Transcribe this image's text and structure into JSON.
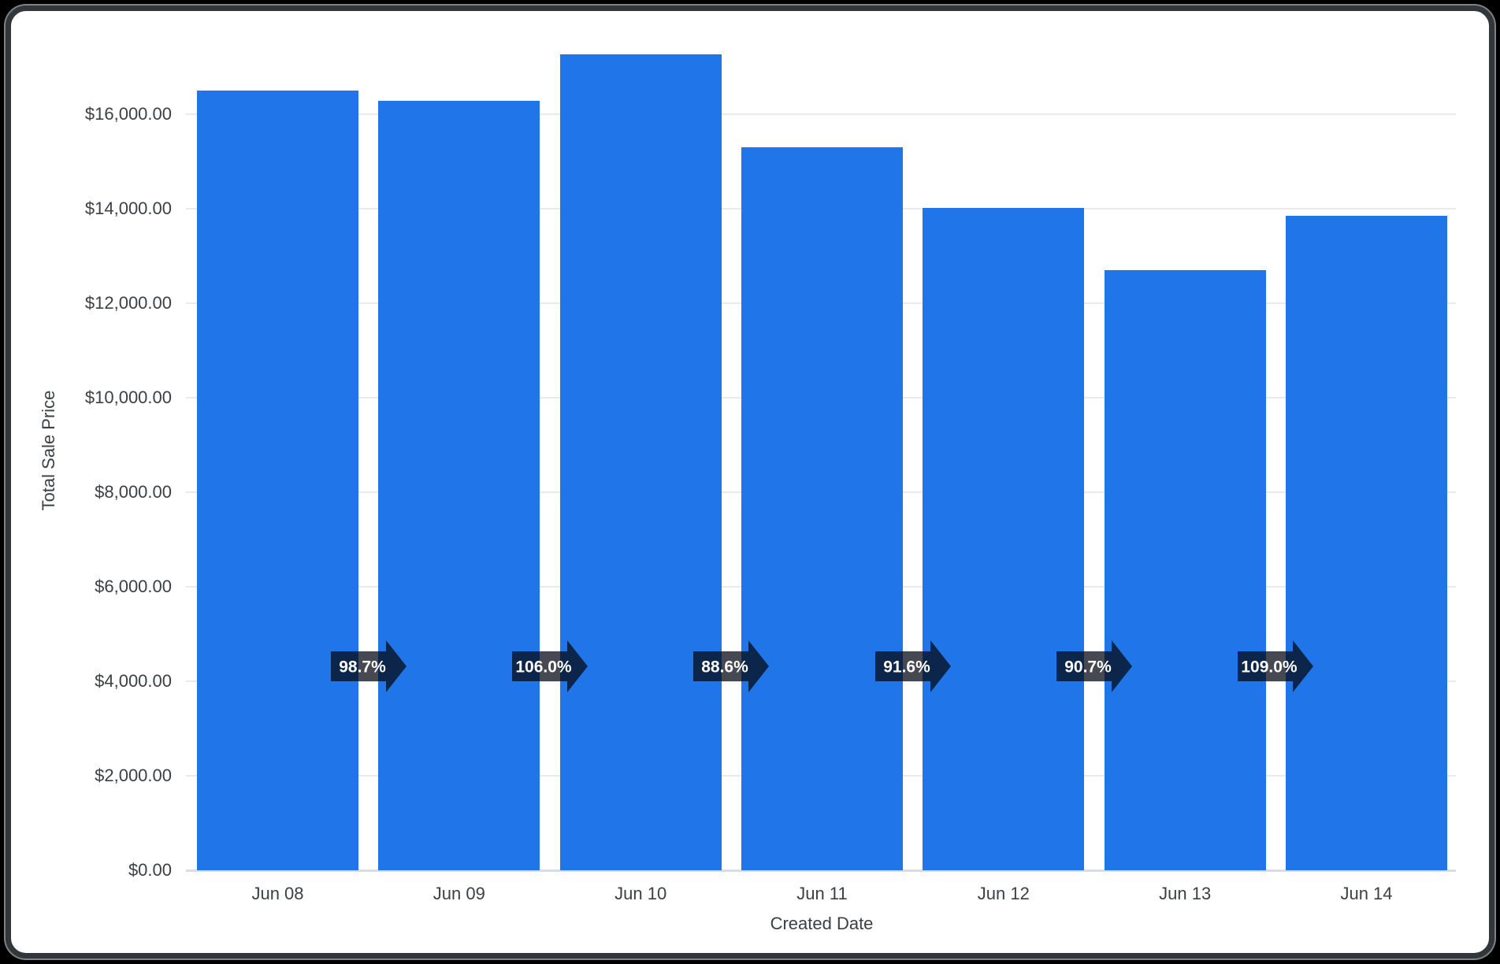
{
  "frame": {
    "outer_bg": "#000000",
    "border_dark": "#31373a",
    "border_highlight": "#7e8285",
    "card_bg": "#ffffff"
  },
  "chart_data": {
    "type": "bar",
    "title": "",
    "xlabel": "Created Date",
    "ylabel": "Total Sale Price",
    "categories": [
      "Jun 08",
      "Jun 09",
      "Jun 10",
      "Jun 11",
      "Jun 12",
      "Jun 13",
      "Jun 14"
    ],
    "values": [
      16500,
      16286,
      17263,
      15295,
      14010,
      12707,
      13851
    ],
    "growth_labels": [
      "98.7%",
      "106.0%",
      "88.6%",
      "91.6%",
      "90.7%",
      "109.0%"
    ],
    "y_ticks": [
      {
        "value": 0,
        "label": "$0.00"
      },
      {
        "value": 2000,
        "label": "$2,000.00"
      },
      {
        "value": 4000,
        "label": "$4,000.00"
      },
      {
        "value": 6000,
        "label": "$6,000.00"
      },
      {
        "value": 8000,
        "label": "$8,000.00"
      },
      {
        "value": 10000,
        "label": "$10,000.00"
      },
      {
        "value": 12000,
        "label": "$12,000.00"
      },
      {
        "value": 14000,
        "label": "$14,000.00"
      },
      {
        "value": 16000,
        "label": "$16,000.00"
      }
    ],
    "ylim": [
      0,
      17750
    ],
    "grid": "horizontal",
    "legend": "none",
    "colors": {
      "bar": "#2075e8",
      "gridline": "#e8eaec",
      "baseline": "#d9dce0",
      "axis_text": "#3c4043",
      "arrow_fill": "rgba(5, 10, 20, 0.74)",
      "arrow_text": "#ffffff"
    }
  }
}
